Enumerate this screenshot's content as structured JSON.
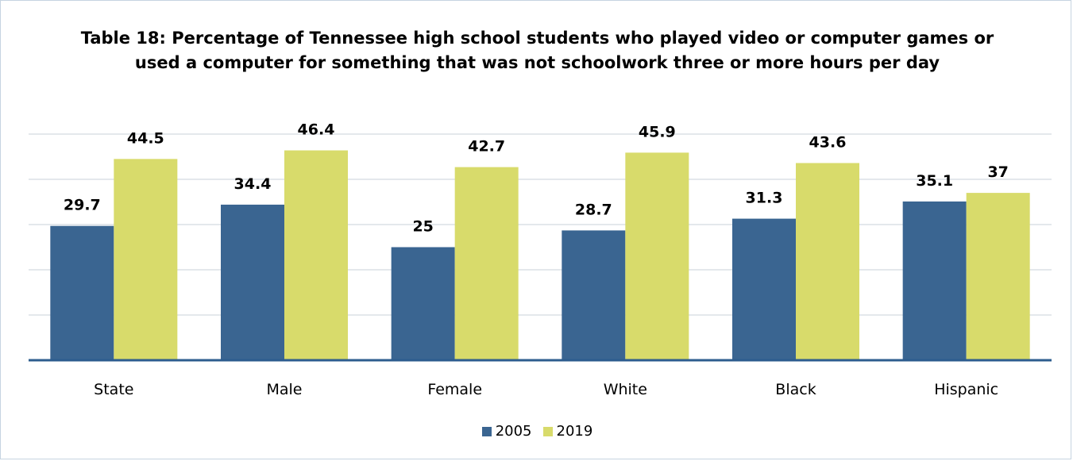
{
  "chart_data": {
    "type": "bar",
    "title": "Table 18: Percentage of Tennessee high school students who played video or computer games or used a computer for something that was not schoolwork three or more hours per day",
    "categories": [
      "State",
      "Male",
      "Female",
      "White",
      "Black",
      "Hispanic"
    ],
    "series": [
      {
        "name": "2005",
        "values": [
          29.7,
          34.4,
          25,
          28.7,
          31.3,
          35.1
        ],
        "color": "#3a6591"
      },
      {
        "name": "2019",
        "values": [
          44.5,
          46.4,
          42.7,
          45.9,
          43.6,
          37
        ],
        "color": "#d8db6b"
      }
    ],
    "value_labels": {
      "2005": [
        "29.7",
        "34.4",
        "25",
        "28.7",
        "31.3",
        "35.1"
      ],
      "2019": [
        "44.5",
        "46.4",
        "42.7",
        "45.9",
        "43.6",
        "37"
      ]
    },
    "ylim": [
      0,
      50
    ],
    "gridlines": [
      10,
      20,
      30,
      40,
      50
    ],
    "grid": true,
    "y_tick_labels_shown": false,
    "legend_position": "bottom"
  }
}
